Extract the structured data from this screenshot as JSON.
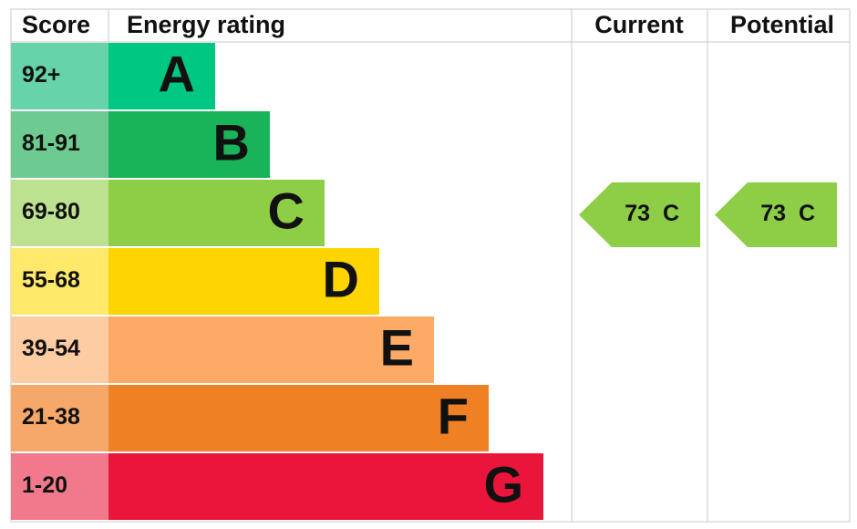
{
  "header": {
    "score": "Score",
    "rating": "Energy rating",
    "current": "Current",
    "potential": "Potential"
  },
  "bands": [
    {
      "score": "92+",
      "letter": "A",
      "color": "#00c781",
      "light": "#66d3a9"
    },
    {
      "score": "81-91",
      "letter": "B",
      "color": "#19b459",
      "light": "#6ecb8f"
    },
    {
      "score": "69-80",
      "letter": "C",
      "color": "#8dce46",
      "light": "#bce28f"
    },
    {
      "score": "55-68",
      "letter": "D",
      "color": "#ffd500",
      "light": "#ffe86a"
    },
    {
      "score": "39-54",
      "letter": "E",
      "color": "#fcaa65",
      "light": "#fdcca2"
    },
    {
      "score": "21-38",
      "letter": "F",
      "color": "#ef8023",
      "light": "#f5a86a"
    },
    {
      "score": "1-20",
      "letter": "G",
      "color": "#e9153b",
      "light": "#f07a8c"
    }
  ],
  "current": {
    "value": "73",
    "letter": "C",
    "band": 2
  },
  "potential": {
    "value": "73",
    "letter": "C",
    "band": 2
  }
}
